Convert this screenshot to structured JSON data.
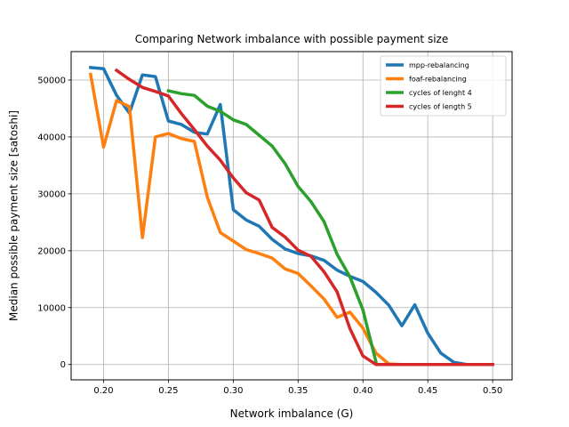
{
  "chart_data": {
    "type": "line",
    "title": "Comparing Network imbalance with possible payment size",
    "xlabel": "Network imbalance (G)",
    "ylabel": "Median possible payment size [satoshi]",
    "xlim": [
      0.175,
      0.515
    ],
    "ylim": [
      -2700,
      55000
    ],
    "xticks": [
      0.2,
      0.25,
      0.3,
      0.35,
      0.4,
      0.45,
      0.5
    ],
    "xtick_labels": [
      "0.20",
      "0.25",
      "0.30",
      "0.35",
      "0.40",
      "0.45",
      "0.50"
    ],
    "yticks": [
      0,
      10000,
      20000,
      30000,
      40000,
      50000
    ],
    "ytick_labels": [
      "0",
      "10000",
      "20000",
      "30000",
      "40000",
      "50000"
    ],
    "grid": true,
    "legend_position": "top-right",
    "series": [
      {
        "name": "mpp-rebalancing",
        "color": "#1f77b4",
        "x": [
          0.19,
          0.2,
          0.21,
          0.22,
          0.23,
          0.24,
          0.25,
          0.26,
          0.27,
          0.28,
          0.29,
          0.3,
          0.31,
          0.32,
          0.33,
          0.34,
          0.35,
          0.36,
          0.37,
          0.38,
          0.39,
          0.4,
          0.41,
          0.42,
          0.43,
          0.44,
          0.45,
          0.46,
          0.47,
          0.48,
          0.49,
          0.5
        ],
        "y": [
          52200,
          52000,
          47300,
          44200,
          50900,
          50600,
          42800,
          42200,
          40800,
          40500,
          45700,
          27200,
          25400,
          24300,
          22000,
          20300,
          19500,
          19100,
          18300,
          16600,
          15500,
          14600,
          12700,
          10400,
          6800,
          10500,
          5500,
          2000,
          400,
          0,
          0,
          0
        ]
      },
      {
        "name": "foaf-rebalancing",
        "color": "#ff7f0e",
        "x": [
          0.19,
          0.2,
          0.21,
          0.22,
          0.23,
          0.24,
          0.25,
          0.26,
          0.27,
          0.28,
          0.29,
          0.3,
          0.31,
          0.32,
          0.33,
          0.34,
          0.35,
          0.36,
          0.37,
          0.38,
          0.39,
          0.4,
          0.41,
          0.42,
          0.43,
          0.44,
          0.45,
          0.46,
          0.47,
          0.48,
          0.49,
          0.5
        ],
        "y": [
          51000,
          38200,
          46400,
          45300,
          22300,
          40000,
          40600,
          39700,
          39200,
          29400,
          23200,
          21700,
          20200,
          19500,
          18700,
          16800,
          16000,
          13800,
          11500,
          8300,
          9200,
          6400,
          2000,
          100,
          0,
          0,
          0,
          0,
          0,
          0,
          0,
          0
        ]
      },
      {
        "name": "cycles of lenght 4",
        "color": "#2ca02c",
        "x": [
          0.25,
          0.26,
          0.27,
          0.28,
          0.29,
          0.3,
          0.31,
          0.32,
          0.33,
          0.34,
          0.35,
          0.36,
          0.37,
          0.38,
          0.39,
          0.4,
          0.41
        ],
        "y": [
          48100,
          47600,
          47300,
          45400,
          44500,
          43000,
          42200,
          40300,
          38400,
          35300,
          31300,
          28600,
          25100,
          19400,
          15400,
          9600,
          500
        ]
      },
      {
        "name": "cycles of length 5",
        "color": "#d62728",
        "x": [
          0.21,
          0.22,
          0.23,
          0.24,
          0.25,
          0.26,
          0.27,
          0.28,
          0.29,
          0.3,
          0.31,
          0.32,
          0.33,
          0.34,
          0.35,
          0.36,
          0.37,
          0.38,
          0.39,
          0.4,
          0.41,
          0.42,
          0.43,
          0.44,
          0.45,
          0.46,
          0.47,
          0.48,
          0.49,
          0.5
        ],
        "y": [
          51700,
          50100,
          48700,
          48000,
          47200,
          44100,
          41300,
          38400,
          35900,
          32800,
          30200,
          28900,
          24100,
          22400,
          20100,
          19000,
          16300,
          12800,
          6300,
          1500,
          0,
          0,
          0,
          0,
          0,
          0,
          0,
          0,
          0,
          0
        ]
      }
    ]
  }
}
